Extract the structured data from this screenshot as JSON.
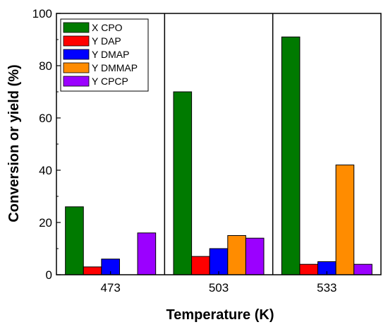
{
  "chart_data": {
    "type": "bar",
    "categories": [
      "473",
      "503",
      "533"
    ],
    "xlabel": "Temperature (K)",
    "ylabel": "Conversion or yield (%)",
    "ylim": [
      0,
      100
    ],
    "yticks": [
      0,
      20,
      40,
      60,
      80,
      100
    ],
    "grid": false,
    "legend_position": "top-left",
    "series": [
      {
        "name": "X CPO",
        "color": "#007a00",
        "values": [
          26,
          70,
          91
        ]
      },
      {
        "name": "Y DAP",
        "color": "#ff0000",
        "values": [
          3,
          7,
          4
        ]
      },
      {
        "name": "Y DMAP",
        "color": "#0000ff",
        "values": [
          6,
          10,
          5
        ]
      },
      {
        "name": "Y DMMAP",
        "color": "#ff8c00",
        "values": [
          0,
          15,
          42
        ]
      },
      {
        "name": "Y CPCP",
        "color": "#9b00ff",
        "values": [
          16,
          14,
          4
        ]
      }
    ]
  }
}
